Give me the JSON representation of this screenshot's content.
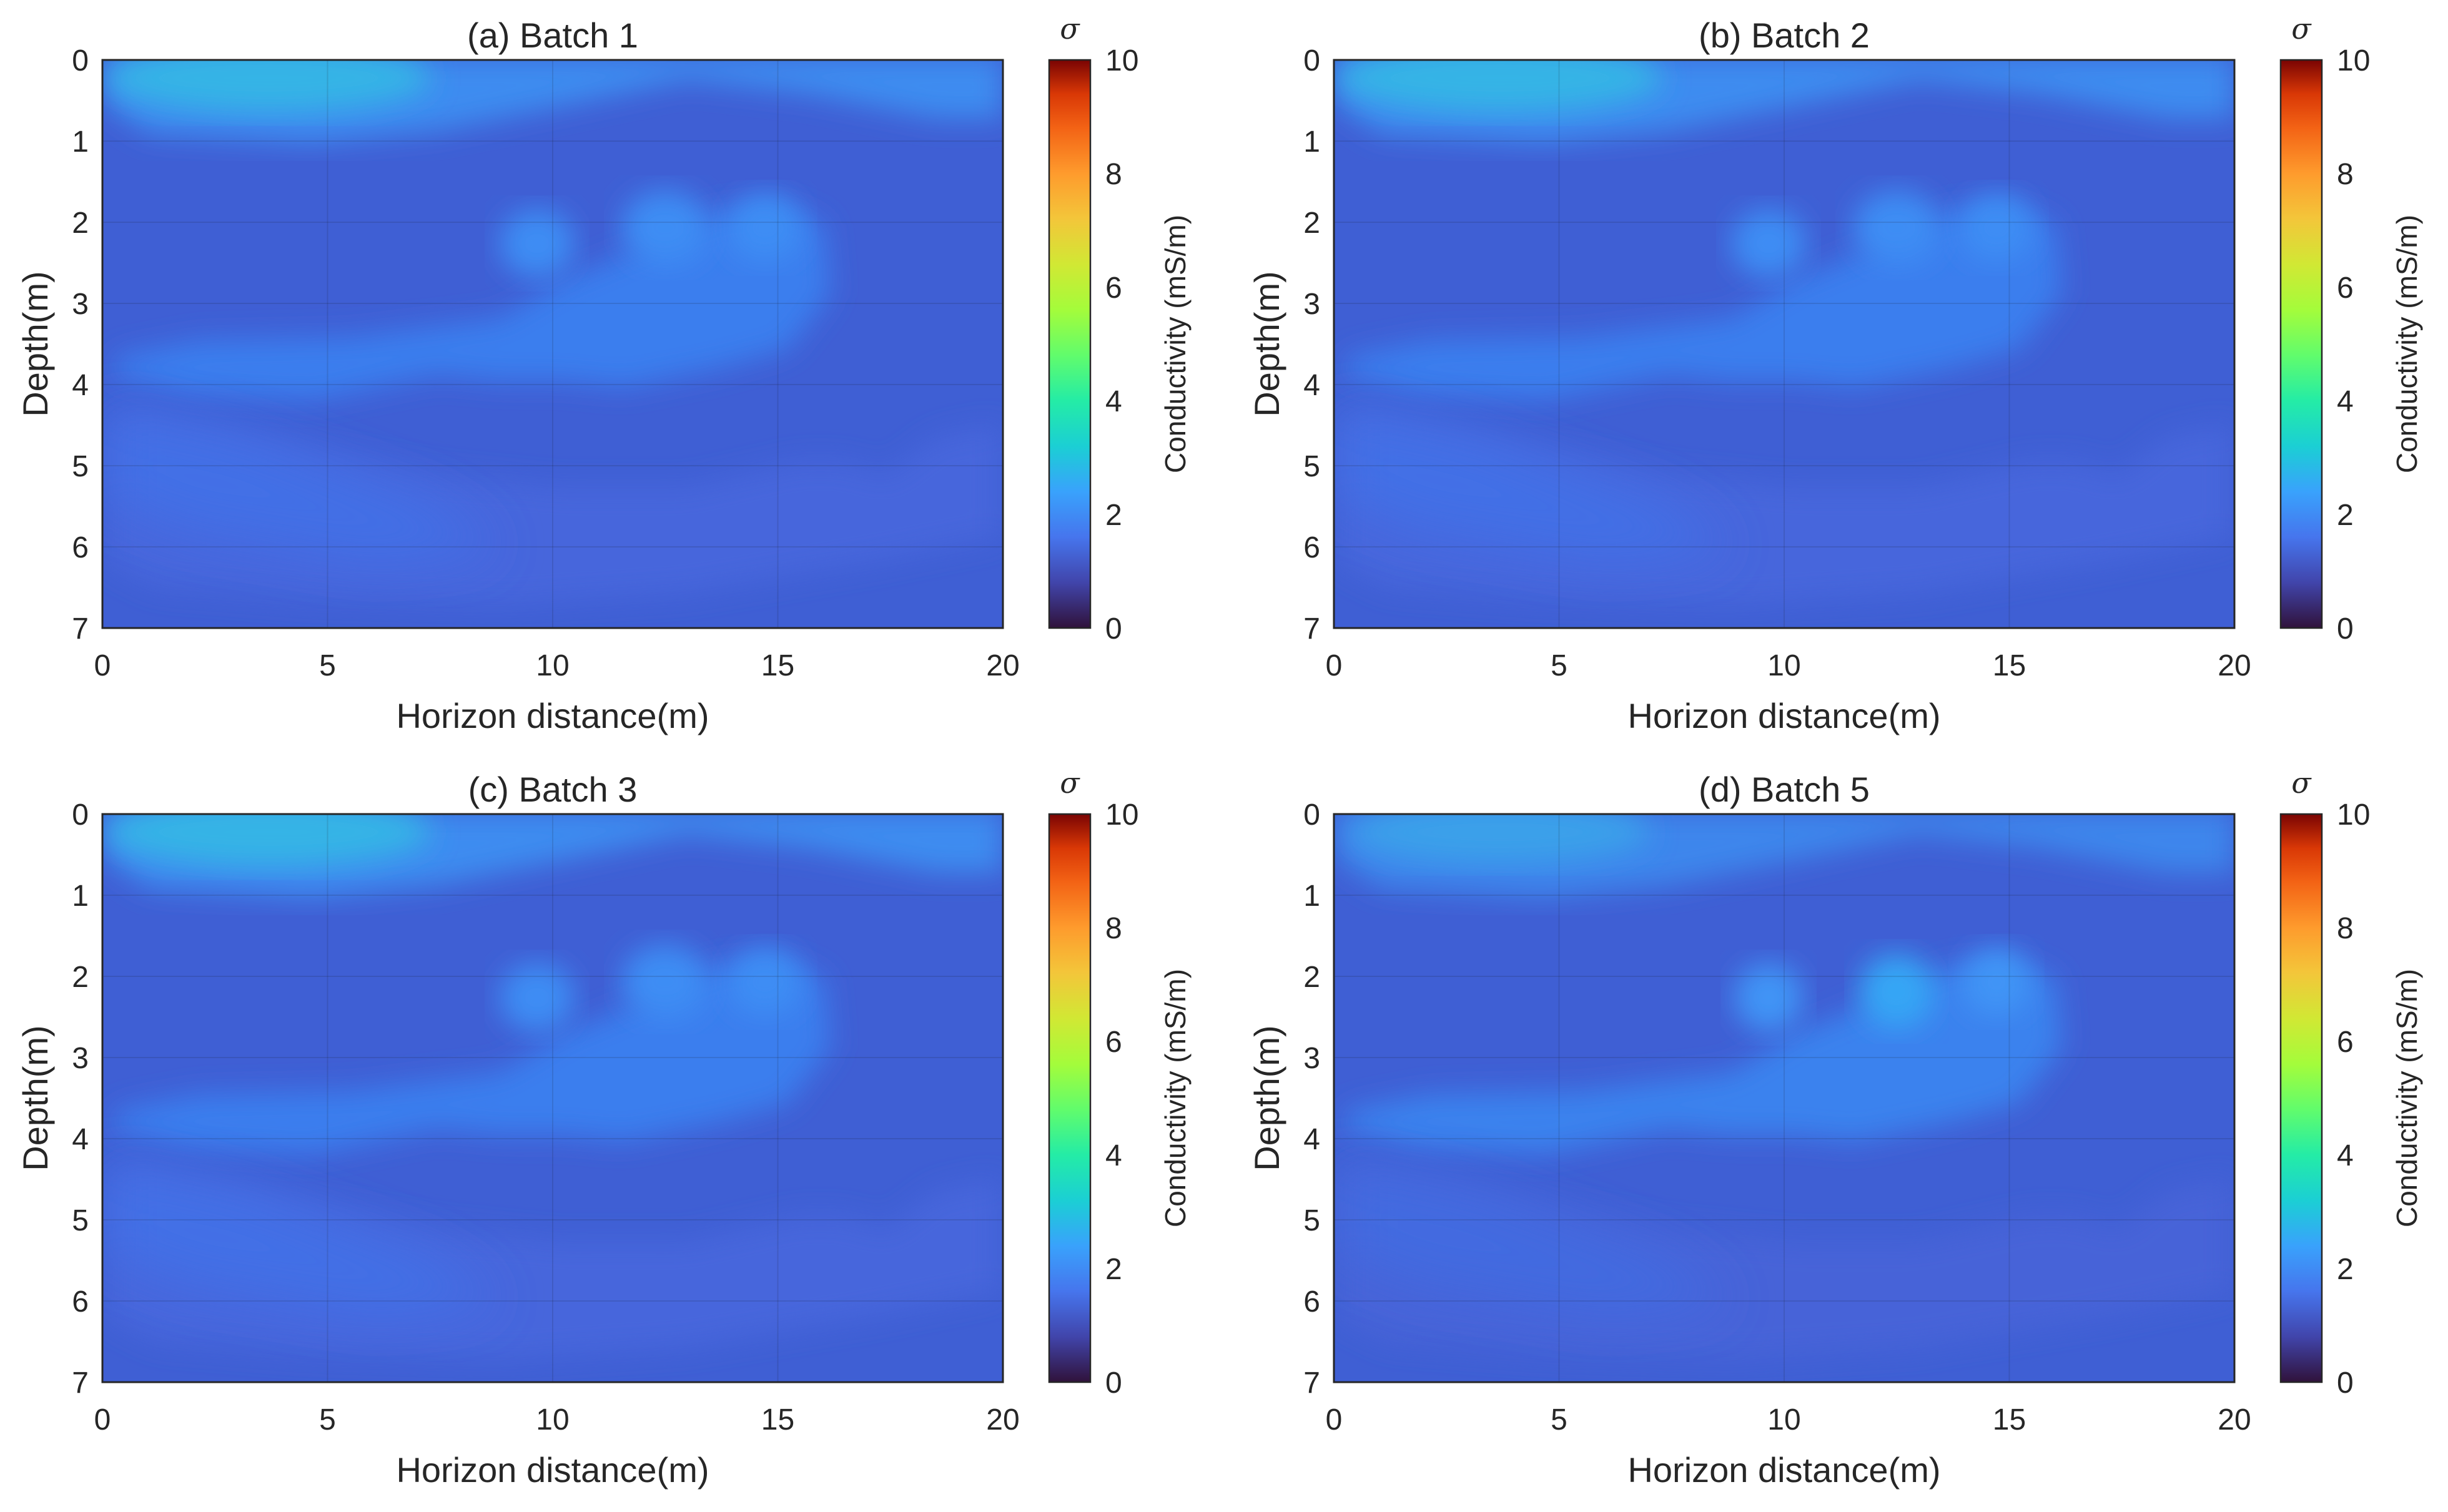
{
  "chart_data": [
    {
      "type": "heatmap",
      "title": "(a) Batch 1",
      "xlabel": "Horizon distance(m)",
      "ylabel": "Depth(m)",
      "xlim": [
        0,
        20
      ],
      "ylim": [
        7,
        0
      ],
      "x_ticks": [
        "0",
        "5",
        "10",
        "15",
        "20"
      ],
      "y_ticks": [
        "0",
        "1",
        "2",
        "3",
        "4",
        "5",
        "6",
        "7"
      ],
      "grid": true,
      "background_value": 1.1,
      "features": [
        {
          "x": [
            0.8,
            13.0
          ],
          "depth": [
            0.0,
            0.9
          ],
          "value": 2.6,
          "note": "shallow conductive layer, peak 3.0 near x=4"
        },
        {
          "x": [
            1.0,
            16.5
          ],
          "depth": [
            1.8,
            3.9
          ],
          "value": 1.8,
          "note": "mid-depth conductive band, peaks near x=10,12.5,15"
        },
        {
          "x": [
            0.0,
            20.0
          ],
          "depth": [
            4.5,
            7.0
          ],
          "value": 1.4,
          "note": "faint deep anomalies"
        }
      ],
      "colorbar": {
        "label": "Conductivity (mS/m)",
        "symbol": "σ",
        "range": [
          0,
          10
        ],
        "ticks": [
          "0",
          "2",
          "4",
          "6",
          "8",
          "10"
        ],
        "colormap": "turbo"
      }
    },
    {
      "type": "heatmap",
      "title": "(b) Batch 2",
      "xlabel": "Horizon distance(m)",
      "ylabel": "Depth(m)",
      "xlim": [
        0,
        20
      ],
      "ylim": [
        7,
        0
      ],
      "x_ticks": [
        "0",
        "5",
        "10",
        "15",
        "20"
      ],
      "y_ticks": [
        "0",
        "1",
        "2",
        "3",
        "4",
        "5",
        "6",
        "7"
      ],
      "grid": true,
      "background_value": 1.1,
      "features": [
        {
          "x": [
            0.8,
            13.0
          ],
          "depth": [
            0.0,
            0.9
          ],
          "value": 2.6,
          "note": "shallow conductive layer"
        },
        {
          "x": [
            1.0,
            16.5
          ],
          "depth": [
            1.8,
            3.9
          ],
          "value": 1.8,
          "note": "mid-depth conductive band"
        },
        {
          "x": [
            0.0,
            20.0
          ],
          "depth": [
            4.5,
            7.0
          ],
          "value": 1.4,
          "note": "faint deep anomalies"
        }
      ],
      "colorbar": {
        "label": "Conductivity (mS/m)",
        "symbol": "σ",
        "range": [
          0,
          10
        ],
        "ticks": [
          "0",
          "2",
          "4",
          "6",
          "8",
          "10"
        ],
        "colormap": "turbo"
      }
    },
    {
      "type": "heatmap",
      "title": "(c) Batch 3",
      "xlabel": "Horizon distance(m)",
      "ylabel": "Depth(m)",
      "xlim": [
        0,
        20
      ],
      "ylim": [
        7,
        0
      ],
      "x_ticks": [
        "0",
        "5",
        "10",
        "15",
        "20"
      ],
      "y_ticks": [
        "0",
        "1",
        "2",
        "3",
        "4",
        "5",
        "6",
        "7"
      ],
      "grid": true,
      "background_value": 1.1,
      "features": [
        {
          "x": [
            0.8,
            13.0
          ],
          "depth": [
            0.0,
            0.9
          ],
          "value": 2.6,
          "note": "shallow conductive layer"
        },
        {
          "x": [
            1.0,
            16.5
          ],
          "depth": [
            1.8,
            3.9
          ],
          "value": 1.8,
          "note": "mid-depth conductive band"
        },
        {
          "x": [
            0.0,
            20.0
          ],
          "depth": [
            4.5,
            7.0
          ],
          "value": 1.4,
          "note": "faint deep anomalies"
        }
      ],
      "colorbar": {
        "label": "Conductivity (mS/m)",
        "symbol": "σ",
        "range": [
          0,
          10
        ],
        "ticks": [
          "0",
          "2",
          "4",
          "6",
          "8",
          "10"
        ],
        "colormap": "turbo"
      }
    },
    {
      "type": "heatmap",
      "title": "(d) Batch 5",
      "xlabel": "Horizon distance(m)",
      "ylabel": "Depth(m)",
      "xlim": [
        0,
        20
      ],
      "ylim": [
        7,
        0
      ],
      "x_ticks": [
        "0",
        "5",
        "10",
        "15",
        "20"
      ],
      "y_ticks": [
        "0",
        "1",
        "2",
        "3",
        "4",
        "5",
        "6",
        "7"
      ],
      "grid": true,
      "background_value": 1.1,
      "features": [
        {
          "x": [
            0.8,
            13.0
          ],
          "depth": [
            0.0,
            0.9
          ],
          "value": 2.3,
          "note": "shallow conductive layer, weaker"
        },
        {
          "x": [
            1.0,
            16.5
          ],
          "depth": [
            1.8,
            3.9
          ],
          "value": 1.9,
          "note": "mid-depth band with peak ~2.4 near x=12.5"
        },
        {
          "x": [
            0.0,
            20.0
          ],
          "depth": [
            4.5,
            7.0
          ],
          "value": 1.3,
          "note": "faint deep anomalies"
        }
      ],
      "colorbar": {
        "label": "Conductivity (mS/m)",
        "symbol": "σ",
        "range": [
          0,
          10
        ],
        "ticks": [
          "0",
          "2",
          "4",
          "6",
          "8",
          "10"
        ],
        "colormap": "turbo"
      }
    }
  ]
}
